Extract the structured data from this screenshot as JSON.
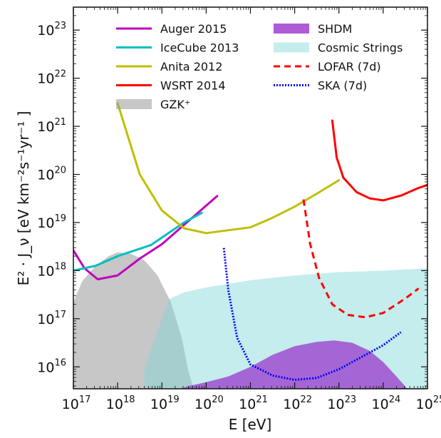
{
  "chart_data": {
    "type": "line",
    "xlabel": "E [eV]",
    "ylabel": "E² · J_ν [eV km⁻²s⁻¹yr⁻¹ ]",
    "x_scale": "log",
    "y_scale": "log",
    "xlim": [
      1e+17,
      1e+25
    ],
    "ylim": [
      3500000000000000.0,
      3e+23
    ],
    "x_ticks": [
      {
        "value": 1e+17,
        "base": "10",
        "exp": "17"
      },
      {
        "value": 1e+18,
        "base": "10",
        "exp": "18"
      },
      {
        "value": 1e+19,
        "base": "10",
        "exp": "19"
      },
      {
        "value": 1e+20,
        "base": "10",
        "exp": "20"
      },
      {
        "value": 1e+21,
        "base": "10",
        "exp": "21"
      },
      {
        "value": 1e+22,
        "base": "10",
        "exp": "22"
      },
      {
        "value": 1e+23,
        "base": "10",
        "exp": "23"
      },
      {
        "value": 1e+24,
        "base": "10",
        "exp": "24"
      },
      {
        "value": 1e+25,
        "base": "10",
        "exp": "25"
      }
    ],
    "y_ticks": [
      {
        "value": 1e+16,
        "base": "10",
        "exp": "16"
      },
      {
        "value": 1e+17,
        "base": "10",
        "exp": "17"
      },
      {
        "value": 1e+18,
        "base": "10",
        "exp": "18"
      },
      {
        "value": 1e+19,
        "base": "10",
        "exp": "19"
      },
      {
        "value": 1e+20,
        "base": "10",
        "exp": "20"
      },
      {
        "value": 1e+21,
        "base": "10",
        "exp": "21"
      },
      {
        "value": 1e+22,
        "base": "10",
        "exp": "22"
      },
      {
        "value": 1e+23,
        "base": "10",
        "exp": "23"
      }
    ],
    "grid": false,
    "legend_position": "top",
    "legend": [
      {
        "label": "Auger 2015",
        "kind": "line",
        "color": "#bf00bf",
        "dash": "solid"
      },
      {
        "label": "IceCube 2013",
        "kind": "line",
        "color": "#00bfbf",
        "dash": "solid"
      },
      {
        "label": "Anita 2012",
        "kind": "line",
        "color": "#bfbf00",
        "dash": "solid"
      },
      {
        "label": "WSRT 2014",
        "kind": "line",
        "color": "#ff0000",
        "dash": "solid"
      },
      {
        "label": "GZK⁺",
        "kind": "patch",
        "color": "#999999"
      },
      {
        "label": "SHDM",
        "kind": "patch",
        "color": "#9932cc"
      },
      {
        "label": "Cosmic Strings",
        "kind": "patch",
        "color": "#7fd8d8"
      },
      {
        "label": "LOFAR (7d)",
        "kind": "line",
        "color": "#ff0000",
        "dash": "dashed"
      },
      {
        "label": "SKA (7d)",
        "kind": "line",
        "color": "#0000ff",
        "dash": "dotted"
      }
    ],
    "areas": [
      {
        "name": "GZK⁺",
        "color": "#999999",
        "opacity": 0.55,
        "points": [
          [
            17.0,
            15.54
          ],
          [
            17.0,
            17.35
          ],
          [
            17.2,
            17.78
          ],
          [
            17.5,
            18.1
          ],
          [
            17.8,
            18.3
          ],
          [
            18.0,
            18.38
          ],
          [
            18.3,
            18.35
          ],
          [
            18.6,
            18.22
          ],
          [
            18.9,
            17.9
          ],
          [
            19.2,
            17.35
          ],
          [
            19.45,
            16.6
          ],
          [
            19.6,
            15.9
          ],
          [
            19.72,
            15.54
          ]
        ]
      },
      {
        "name": "Cosmic Strings",
        "color": "#7fd8d8",
        "opacity": 0.45,
        "points": [
          [
            18.6,
            15.54
          ],
          [
            18.6,
            15.9
          ],
          [
            18.8,
            16.5
          ],
          [
            19.0,
            17.0
          ],
          [
            19.15,
            17.4
          ],
          [
            19.5,
            17.55
          ],
          [
            20.0,
            17.65
          ],
          [
            21.0,
            17.8
          ],
          [
            22.0,
            17.9
          ],
          [
            23.0,
            17.97
          ],
          [
            24.0,
            18.0
          ],
          [
            25.0,
            18.05
          ],
          [
            25.0,
            15.54
          ]
        ]
      },
      {
        "name": "SHDM",
        "color": "#9932cc",
        "opacity": 0.72,
        "points": [
          [
            19.4,
            15.54
          ],
          [
            19.6,
            15.6
          ],
          [
            20.0,
            15.68
          ],
          [
            20.5,
            15.8
          ],
          [
            21.0,
            16.0
          ],
          [
            21.5,
            16.25
          ],
          [
            22.0,
            16.43
          ],
          [
            22.5,
            16.52
          ],
          [
            22.9,
            16.55
          ],
          [
            23.3,
            16.5
          ],
          [
            23.7,
            16.33
          ],
          [
            24.0,
            16.1
          ],
          [
            24.3,
            15.8
          ],
          [
            24.55,
            15.54
          ]
        ]
      }
    ],
    "series": [
      {
        "name": "Auger 2015",
        "color": "#bf00bf",
        "dash": "solid",
        "width": 3,
        "points": [
          [
            17.0,
            18.42
          ],
          [
            17.25,
            18.05
          ],
          [
            17.55,
            17.82
          ],
          [
            18.0,
            17.9
          ],
          [
            18.5,
            18.25
          ],
          [
            19.0,
            18.55
          ],
          [
            19.5,
            18.95
          ],
          [
            20.0,
            19.35
          ],
          [
            20.25,
            19.55
          ]
        ]
      },
      {
        "name": "IceCube 2013",
        "color": "#00bfbf",
        "dash": "solid",
        "width": 3,
        "points": [
          [
            17.0,
            18.0
          ],
          [
            17.5,
            18.1
          ],
          [
            18.0,
            18.3
          ],
          [
            18.75,
            18.53
          ],
          [
            19.5,
            19.0
          ],
          [
            19.9,
            19.2
          ]
        ]
      },
      {
        "name": "Anita 2012",
        "color": "#bfbf00",
        "dash": "solid",
        "width": 3,
        "points": [
          [
            18.0,
            21.48
          ],
          [
            18.5,
            20.0
          ],
          [
            19.0,
            19.25
          ],
          [
            19.5,
            18.88
          ],
          [
            20.0,
            18.78
          ],
          [
            21.0,
            18.9
          ],
          [
            21.5,
            19.1
          ],
          [
            22.0,
            19.33
          ],
          [
            22.5,
            19.6
          ],
          [
            23.0,
            19.88
          ]
        ]
      },
      {
        "name": "WSRT 2014",
        "color": "#ff0000",
        "dash": "solid",
        "width": 3,
        "points": [
          [
            22.85,
            21.12
          ],
          [
            22.95,
            20.35
          ],
          [
            23.1,
            19.93
          ],
          [
            23.4,
            19.63
          ],
          [
            23.7,
            19.5
          ],
          [
            24.0,
            19.46
          ],
          [
            24.4,
            19.56
          ],
          [
            24.8,
            19.72
          ],
          [
            25.0,
            19.78
          ]
        ]
      },
      {
        "name": "LOFAR (7d)",
        "color": "#ff0000",
        "dash": "dashed",
        "width": 3,
        "points": [
          [
            22.2,
            19.48
          ],
          [
            22.35,
            18.55
          ],
          [
            22.55,
            17.85
          ],
          [
            22.85,
            17.3
          ],
          [
            23.2,
            17.08
          ],
          [
            23.6,
            17.03
          ],
          [
            24.0,
            17.12
          ],
          [
            24.5,
            17.42
          ],
          [
            24.8,
            17.63
          ]
        ]
      },
      {
        "name": "SKA (7d)",
        "color": "#0000ff",
        "dash": "dotted",
        "width": 3,
        "points": [
          [
            20.4,
            18.47
          ],
          [
            20.5,
            17.6
          ],
          [
            20.7,
            16.6
          ],
          [
            21.0,
            16.05
          ],
          [
            21.5,
            15.82
          ],
          [
            22.0,
            15.73
          ],
          [
            22.5,
            15.77
          ],
          [
            23.0,
            15.95
          ],
          [
            23.5,
            16.2
          ],
          [
            24.0,
            16.45
          ],
          [
            24.4,
            16.72
          ]
        ]
      }
    ]
  }
}
